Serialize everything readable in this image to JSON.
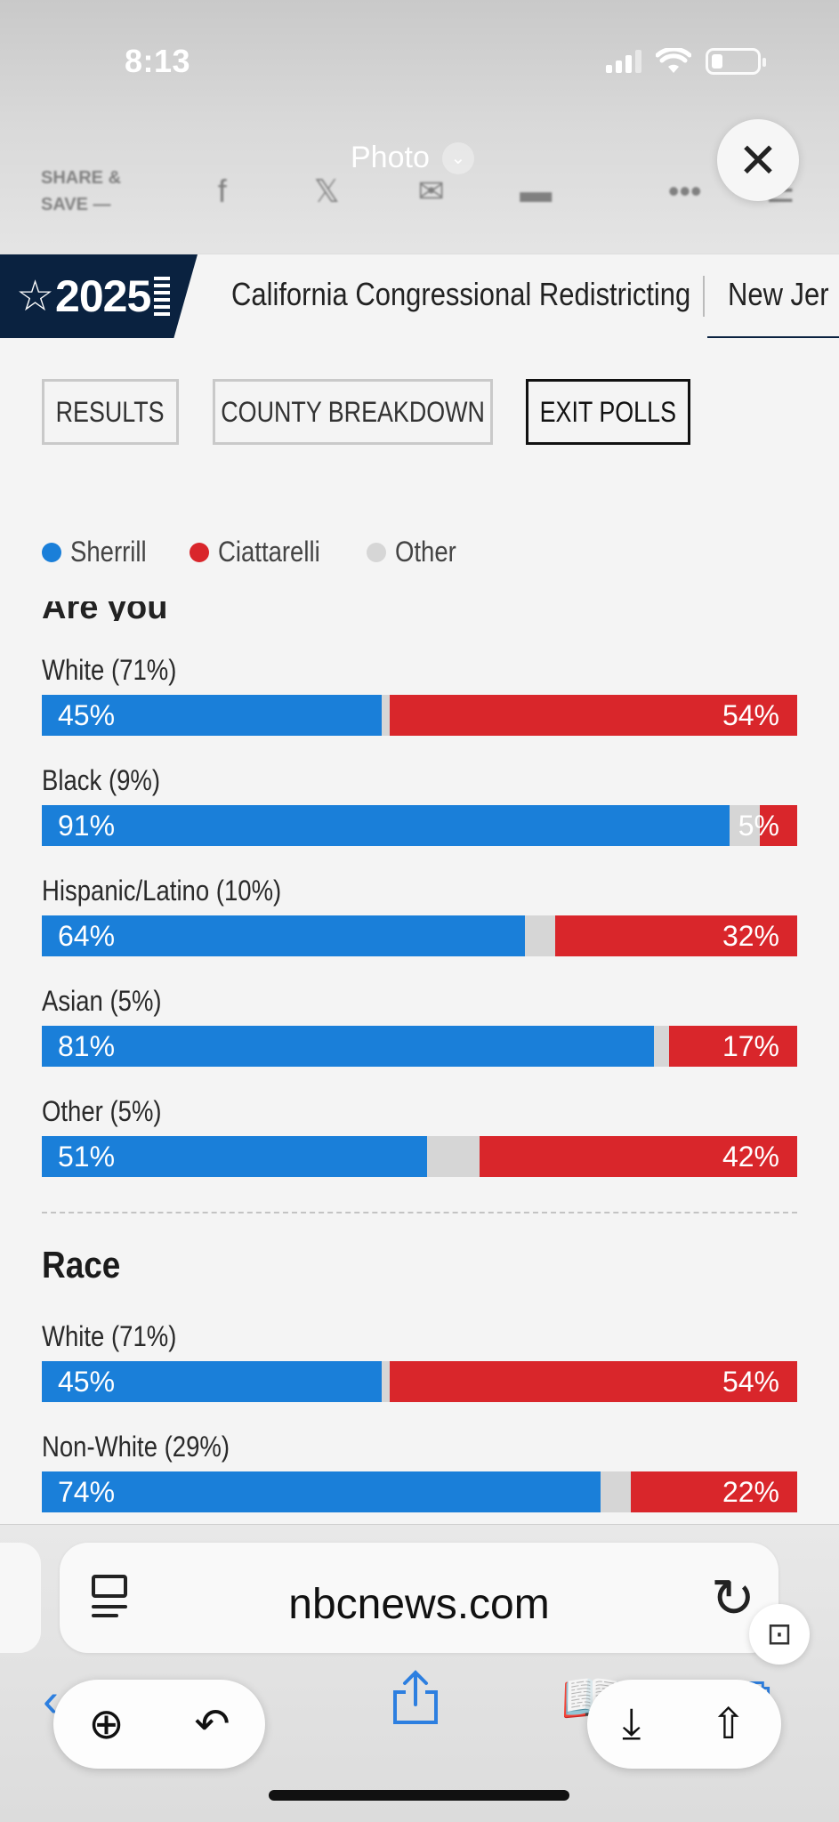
{
  "status_bar": {
    "time": "8:13"
  },
  "viewer": {
    "title": "Photo",
    "chevron": "⌄",
    "close_symbol": "✕"
  },
  "share_bar": {
    "label_line1": "SHARE &",
    "label_line2": "SAVE —",
    "icons": [
      "facebook-icon",
      "x-icon",
      "mail-icon",
      "message-icon",
      "more-icon",
      "menu-icon"
    ]
  },
  "election_nav": {
    "logo_text": "2025",
    "links": [
      "California Congressional Redistricting",
      "New Jer"
    ]
  },
  "tabs": [
    {
      "label": "RESULTS",
      "active": false
    },
    {
      "label": "COUNTY BREAKDOWN",
      "active": false
    },
    {
      "label": "EXIT POLLS",
      "active": true
    }
  ],
  "legend": [
    {
      "name": "Sherrill",
      "color": "#1a7fd9"
    },
    {
      "name": "Ciattarelli",
      "color": "#d9262b"
    },
    {
      "name": "Other",
      "color": "#d6d6d6"
    }
  ],
  "clipped_section_title": "Are you",
  "colors": {
    "sherrill": "#1a7fd9",
    "ciattarelli": "#d9262b",
    "other": "#d6d6d6"
  },
  "chart_data": {
    "type": "bar",
    "orientation": "horizontal-stacked",
    "groups": [
      {
        "title": "Are you",
        "rows": [
          {
            "label": "White (71%)",
            "sherrill": 45,
            "other": 1,
            "ciattarelli": 54,
            "sherrill_label": "45%",
            "ciattarelli_label": "54%"
          },
          {
            "label": "Black (9%)",
            "sherrill": 91,
            "other": 4,
            "ciattarelli": 5,
            "sherrill_label": "91%",
            "ciattarelli_label": "5%"
          },
          {
            "label": "Hispanic/Latino (10%)",
            "sherrill": 64,
            "other": 4,
            "ciattarelli": 32,
            "sherrill_label": "64%",
            "ciattarelli_label": "32%"
          },
          {
            "label": "Asian (5%)",
            "sherrill": 81,
            "other": 2,
            "ciattarelli": 17,
            "sherrill_label": "81%",
            "ciattarelli_label": "17%"
          },
          {
            "label": "Other (5%)",
            "sherrill": 51,
            "other": 7,
            "ciattarelli": 42,
            "sherrill_label": "51%",
            "ciattarelli_label": "42%"
          }
        ]
      },
      {
        "title": "Race",
        "rows": [
          {
            "label": "White (71%)",
            "sherrill": 45,
            "other": 1,
            "ciattarelli": 54,
            "sherrill_label": "45%",
            "ciattarelli_label": "54%"
          },
          {
            "label": "Non-White (29%)",
            "sherrill": 74,
            "other": 4,
            "ciattarelli": 22,
            "sherrill_label": "74%",
            "ciattarelli_label": "22%"
          }
        ]
      }
    ]
  },
  "safari": {
    "url": "nbcnews.com",
    "reload_symbol": "↻",
    "scan_symbol": "⊡",
    "toolbar_left_pill": [
      "zoom-in-icon",
      "reply-icon"
    ],
    "toolbar_right_pill": [
      "download-icon",
      "share-icon"
    ]
  }
}
